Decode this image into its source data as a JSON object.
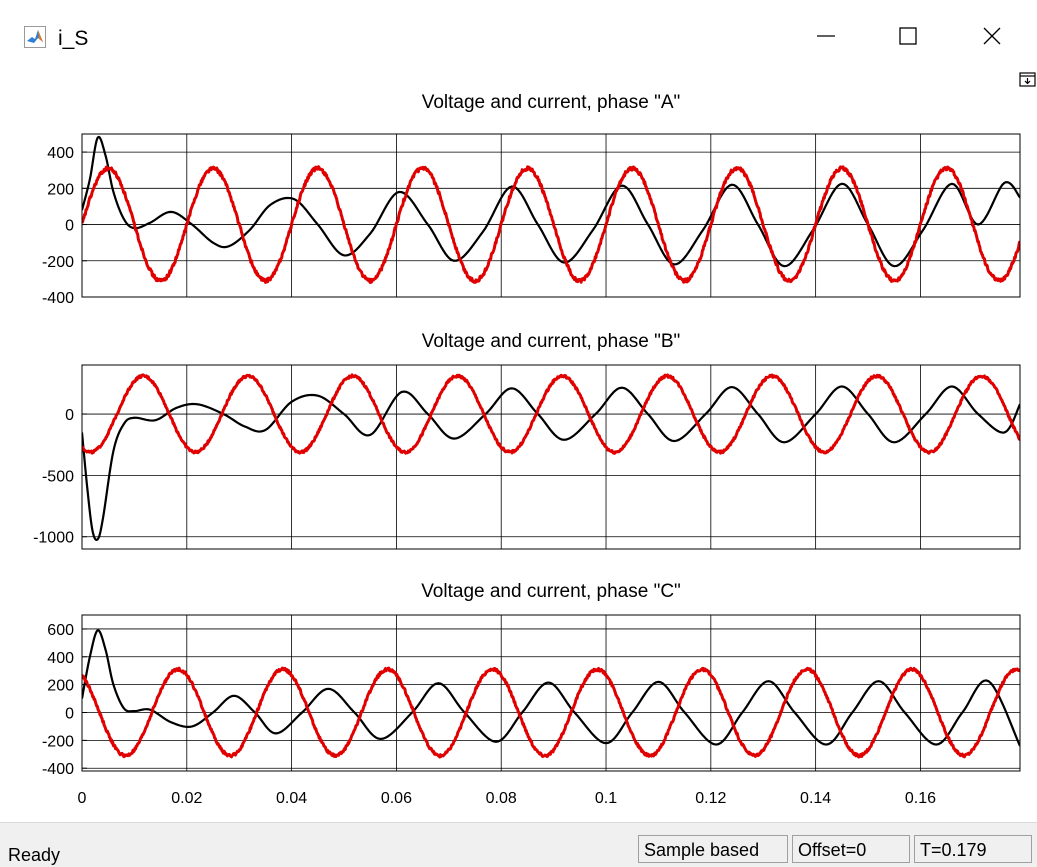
{
  "window": {
    "title": "i_S"
  },
  "status": {
    "ready": "Ready",
    "mode": "Sample based",
    "offset": "Offset=0",
    "time": "T=0.179"
  },
  "colors": {
    "voltage": "#e00000",
    "current": "#000000",
    "grid": "#000000",
    "background": "#ffffff"
  },
  "icons": {
    "app": "matlab-icon",
    "minimize": "minimize-icon",
    "maximize": "maximize-icon",
    "close": "close-icon",
    "corner": "dock-icon"
  },
  "chart_data": [
    {
      "type": "line",
      "title": "Voltage and current, phase \"A\"",
      "xlim": [
        0,
        0.179
      ],
      "ylim": [
        -400,
        500
      ],
      "yticks": [
        400,
        200,
        0,
        -200,
        -400
      ],
      "ytick_labels": [
        "400",
        "200",
        "0",
        "-200",
        "-400"
      ],
      "xticks": [
        0,
        0.02,
        0.04,
        0.06,
        0.08,
        0.1,
        0.12,
        0.14,
        0.16
      ],
      "xtick_labels": [],
      "grid": true,
      "series": [
        {
          "color": "#000000",
          "x": [
            0,
            0.0015,
            0.003,
            0.0045,
            0.006,
            0.008,
            0.01,
            0.013,
            0.017,
            0.021,
            0.025,
            0.028,
            0.032,
            0.036,
            0.0405,
            0.045,
            0.05,
            0.055,
            0.0605,
            0.066,
            0.071,
            0.0765,
            0.082,
            0.087,
            0.092,
            0.0975,
            0.103,
            0.108,
            0.113,
            0.1185,
            0.124,
            0.129,
            0.134,
            0.1395,
            0.145,
            0.15,
            0.155,
            0.1605,
            0.166,
            0.171,
            0.176,
            0.179
          ],
          "y": [
            80,
            250,
            480,
            380,
            180,
            30,
            -20,
            10,
            70,
            0,
            -100,
            -120,
            -30,
            110,
            140,
            0,
            -170,
            -50,
            180,
            0,
            -200,
            -40,
            210,
            0,
            -210,
            -30,
            215,
            0,
            -220,
            -30,
            220,
            0,
            -230,
            -30,
            225,
            0,
            -230,
            -30,
            225,
            0,
            230,
            150
          ]
        },
        {
          "color": "#e00000",
          "sine": {
            "amplitude": 310,
            "frequency_hz": 50,
            "phase_deg": 0
          },
          "noise": 10
        }
      ]
    },
    {
      "type": "line",
      "title": "Voltage and current, phase \"B\"",
      "xlim": [
        0,
        0.179
      ],
      "ylim": [
        -1100,
        400
      ],
      "yticks": [
        0,
        -500,
        -1000
      ],
      "ytick_labels": [
        "0",
        "-500",
        "-1000"
      ],
      "xticks": [
        0,
        0.02,
        0.04,
        0.06,
        0.08,
        0.1,
        0.12,
        0.14,
        0.16
      ],
      "xtick_labels": [],
      "grid": true,
      "series": [
        {
          "color": "#000000",
          "x": [
            0,
            0.001,
            0.002,
            0.003,
            0.004,
            0.006,
            0.008,
            0.01,
            0.014,
            0.018,
            0.022,
            0.027,
            0.031,
            0.035,
            0.04,
            0.045,
            0.05,
            0.055,
            0.061,
            0.066,
            0.071,
            0.077,
            0.082,
            0.087,
            0.092,
            0.098,
            0.103,
            0.108,
            0.113,
            0.119,
            0.124,
            0.129,
            0.134,
            0.14,
            0.145,
            0.15,
            0.155,
            0.161,
            0.166,
            0.171,
            0.176,
            0.179
          ],
          "y": [
            -150,
            -600,
            -950,
            -1020,
            -850,
            -300,
            -80,
            -30,
            -50,
            50,
            80,
            0,
            -100,
            -130,
            100,
            150,
            0,
            -170,
            180,
            0,
            -200,
            0,
            210,
            0,
            -210,
            0,
            215,
            0,
            -220,
            0,
            220,
            0,
            -230,
            0,
            225,
            0,
            -230,
            0,
            225,
            0,
            -150,
            80
          ]
        },
        {
          "color": "#e00000",
          "sine": {
            "amplitude": 310,
            "frequency_hz": 50,
            "phase_deg": -120
          },
          "noise": 10
        }
      ]
    },
    {
      "type": "line",
      "title": "Voltage and current, phase \"C\"",
      "xlim": [
        0,
        0.179
      ],
      "ylim": [
        -420,
        700
      ],
      "yticks": [
        600,
        400,
        200,
        0,
        -200,
        -400
      ],
      "ytick_labels": [
        "600",
        "400",
        "200",
        "0",
        "-200",
        "-400"
      ],
      "xticks": [
        0,
        0.02,
        0.04,
        0.06,
        0.08,
        0.1,
        0.12,
        0.14,
        0.16
      ],
      "xtick_labels": [
        "0",
        "0.02",
        "0.04",
        "0.06",
        "0.08",
        "0.1",
        "0.12",
        "0.14",
        "0.16"
      ],
      "grid": true,
      "series": [
        {
          "color": "#000000",
          "x": [
            0,
            0.0015,
            0.003,
            0.0045,
            0.006,
            0.008,
            0.01,
            0.013,
            0.017,
            0.021,
            0.025,
            0.029,
            0.033,
            0.037,
            0.042,
            0.047,
            0.052,
            0.057,
            0.063,
            0.068,
            0.073,
            0.079,
            0.084,
            0.089,
            0.094,
            0.1,
            0.105,
            0.11,
            0.115,
            0.121,
            0.126,
            0.131,
            0.136,
            0.142,
            0.147,
            0.152,
            0.157,
            0.163,
            0.168,
            0.173,
            0.179
          ],
          "y": [
            100,
            400,
            590,
            450,
            200,
            30,
            10,
            20,
            -70,
            -100,
            0,
            120,
            0,
            -150,
            0,
            170,
            0,
            -190,
            0,
            210,
            0,
            -210,
            0,
            215,
            0,
            -220,
            0,
            220,
            0,
            -230,
            0,
            225,
            0,
            -230,
            0,
            225,
            0,
            -230,
            0,
            225,
            -240
          ]
        },
        {
          "color": "#e00000",
          "sine": {
            "amplitude": 310,
            "frequency_hz": 50,
            "phase_deg": 120
          },
          "noise": 10
        }
      ]
    }
  ]
}
